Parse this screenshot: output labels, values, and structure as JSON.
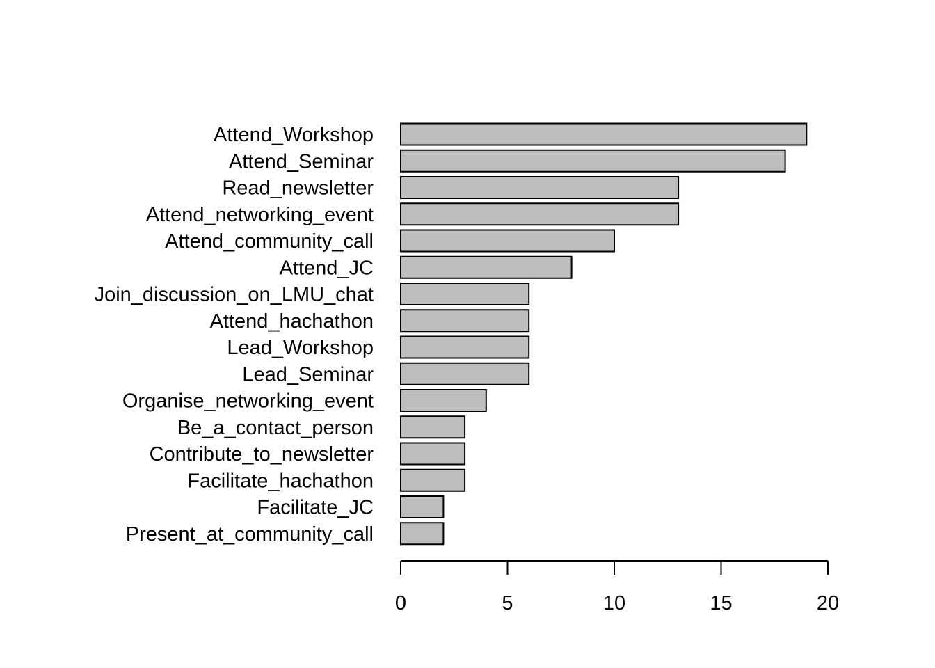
{
  "chart_data": {
    "type": "bar",
    "orientation": "horizontal",
    "title": "",
    "xlabel": "",
    "ylabel": "",
    "categories": [
      "Attend_Workshop",
      "Attend_Seminar",
      "Read_newsletter",
      "Attend_networking_event",
      "Attend_community_call",
      "Attend_JC",
      "Join_discussion_on_LMU_chat",
      "Attend_hachathon",
      "Lead_Workshop",
      "Lead_Seminar",
      "Organise_networking_event",
      "Be_a_contact_person",
      "Contribute_to_newsletter",
      "Facilitate_hachathon",
      "Facilitate_JC",
      "Present_at_community_call"
    ],
    "values": [
      19,
      18,
      13,
      13,
      10,
      8,
      6,
      6,
      6,
      6,
      4,
      3,
      3,
      3,
      2,
      2
    ],
    "xlim": [
      0,
      20
    ],
    "xticks": [
      0,
      5,
      10,
      15,
      20
    ],
    "grid": false,
    "bar_color": "#bebebe",
    "bar_border_color": "#000000"
  }
}
